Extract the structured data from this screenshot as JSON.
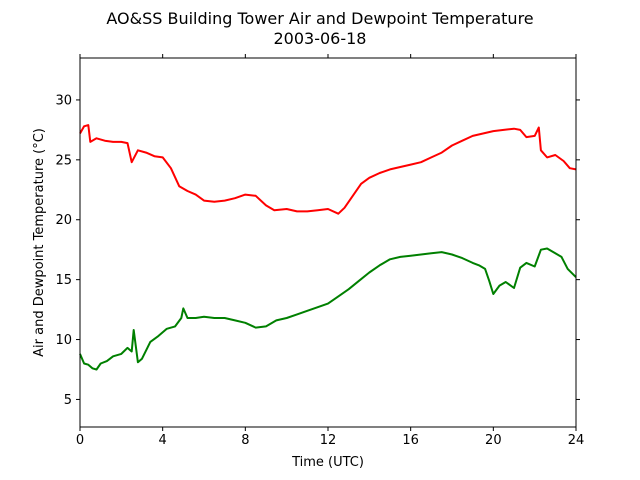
{
  "chart_data": {
    "type": "line",
    "title": "AO&SS Building Tower Air and Dewpoint Temperature",
    "subtitle": "2003-06-18",
    "xlabel": "Time (UTC)",
    "ylabel": "Air and Dewpoint Temperature (°C)",
    "xlim": [
      0,
      24
    ],
    "ylim": [
      2.7,
      33.5
    ],
    "xticks": [
      0,
      4,
      8,
      12,
      16,
      20,
      24
    ],
    "yticks": [
      5,
      10,
      15,
      20,
      25,
      30
    ],
    "grid": false,
    "series": [
      {
        "color": "#ff0000",
        "x": [
          0,
          0.2,
          0.4,
          0.5,
          0.8,
          1.2,
          1.6,
          2.0,
          2.3,
          2.5,
          2.8,
          3.2,
          3.6,
          4.0,
          4.4,
          4.8,
          5.2,
          5.6,
          6.0,
          6.5,
          7.0,
          7.5,
          8.0,
          8.5,
          9.0,
          9.4,
          10.0,
          10.5,
          11.0,
          11.5,
          12.0,
          12.5,
          12.8,
          13.2,
          13.6,
          14.0,
          14.5,
          15.0,
          15.5,
          16.0,
          16.5,
          17.0,
          17.5,
          18.0,
          18.5,
          19.0,
          19.5,
          20.0,
          20.5,
          21.0,
          21.3,
          21.6,
          22.0,
          22.2,
          22.3,
          22.6,
          23.0,
          23.4,
          23.7,
          24.0
        ],
        "values": [
          27.2,
          27.8,
          27.9,
          26.5,
          26.8,
          26.6,
          26.5,
          26.5,
          26.4,
          24.8,
          25.8,
          25.6,
          25.3,
          25.2,
          24.3,
          22.8,
          22.4,
          22.1,
          21.6,
          21.5,
          21.6,
          21.8,
          22.1,
          22.0,
          21.2,
          20.8,
          20.9,
          20.7,
          20.7,
          20.8,
          20.9,
          20.5,
          21.0,
          22.0,
          23.0,
          23.5,
          23.9,
          24.2,
          24.4,
          24.6,
          24.8,
          25.2,
          25.6,
          26.2,
          26.6,
          27.0,
          27.2,
          27.4,
          27.5,
          27.6,
          27.5,
          26.9,
          27.0,
          27.7,
          25.8,
          25.2,
          25.4,
          24.9,
          24.3,
          24.2
        ]
      },
      {
        "color": "#008000",
        "x": [
          0,
          0.2,
          0.4,
          0.6,
          0.8,
          1.0,
          1.3,
          1.6,
          2.0,
          2.3,
          2.5,
          2.6,
          2.8,
          3.0,
          3.4,
          3.8,
          4.2,
          4.6,
          4.9,
          5.0,
          5.2,
          5.6,
          6.0,
          6.5,
          7.0,
          7.5,
          8.0,
          8.5,
          9.0,
          9.5,
          10.0,
          10.5,
          11.0,
          11.5,
          12.0,
          12.5,
          13.0,
          13.5,
          14.0,
          14.5,
          15.0,
          15.5,
          16.0,
          16.5,
          17.0,
          17.5,
          18.0,
          18.5,
          19.0,
          19.3,
          19.6,
          19.8,
          20.0,
          20.3,
          20.6,
          21.0,
          21.3,
          21.6,
          22.0,
          22.3,
          22.6,
          23.0,
          23.3,
          23.6,
          24.0
        ],
        "values": [
          8.8,
          8.0,
          7.9,
          7.6,
          7.5,
          8.0,
          8.2,
          8.6,
          8.8,
          9.3,
          9.0,
          10.8,
          8.1,
          8.4,
          9.8,
          10.3,
          10.9,
          11.1,
          11.8,
          12.6,
          11.8,
          11.8,
          11.9,
          11.8,
          11.8,
          11.6,
          11.4,
          11.0,
          11.1,
          11.6,
          11.8,
          12.1,
          12.4,
          12.7,
          13.0,
          13.6,
          14.2,
          14.9,
          15.6,
          16.2,
          16.7,
          16.9,
          17.0,
          17.1,
          17.2,
          17.3,
          17.1,
          16.8,
          16.4,
          16.2,
          15.9,
          14.9,
          13.8,
          14.5,
          14.8,
          14.3,
          16.0,
          16.4,
          16.1,
          17.5,
          17.6,
          17.2,
          16.9,
          15.9,
          15.2
        ]
      }
    ]
  }
}
